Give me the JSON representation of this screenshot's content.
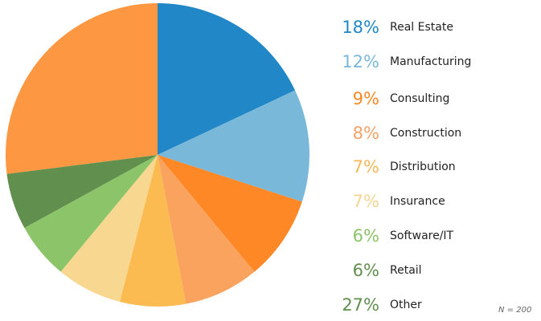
{
  "chart_data": {
    "type": "pie",
    "title": "",
    "categories": [
      "Real Estate",
      "Manufacturing",
      "Consulting",
      "Construction",
      "Distribution",
      "Insurance",
      "Software/IT",
      "Retail",
      "Other"
    ],
    "values": [
      18,
      12,
      9,
      8,
      7,
      7,
      6,
      6,
      27
    ],
    "labels": [
      "18%",
      "12%",
      "9%",
      "8%",
      "7%",
      "7%",
      "6%",
      "6%",
      "27%"
    ],
    "colors": [
      "#2187c6",
      "#7ab8d9",
      "#fe8826",
      "#faa35e",
      "#fbbb50",
      "#f8d890",
      "#8cc46a",
      "#618f4d",
      "#fd9741"
    ],
    "start_angle_deg": 0,
    "direction": "clockwise",
    "legend_position": "right",
    "note": "N = 200"
  },
  "legend": {
    "items": [
      {
        "pct": "18%",
        "label": "Real Estate",
        "color": "#2187c6"
      },
      {
        "pct": "12%",
        "label": "Manufacturing",
        "color": "#7ab8d9"
      },
      {
        "pct": "9%",
        "label": "Consulting",
        "color": "#fe8826"
      },
      {
        "pct": "8%",
        "label": "Construction",
        "color": "#f5a26a"
      },
      {
        "pct": "7%",
        "label": "Distribution",
        "color": "#f6b95a"
      },
      {
        "pct": "7%",
        "label": "Insurance",
        "color": "#f5d595"
      },
      {
        "pct": "6%",
        "label": "Software/IT",
        "color": "#8cc46a"
      },
      {
        "pct": "6%",
        "label": "Retail",
        "color": "#618f4d"
      },
      {
        "pct": "27%",
        "label": "Other",
        "color": "#618f4d"
      }
    ]
  },
  "footnote": "N = 200"
}
